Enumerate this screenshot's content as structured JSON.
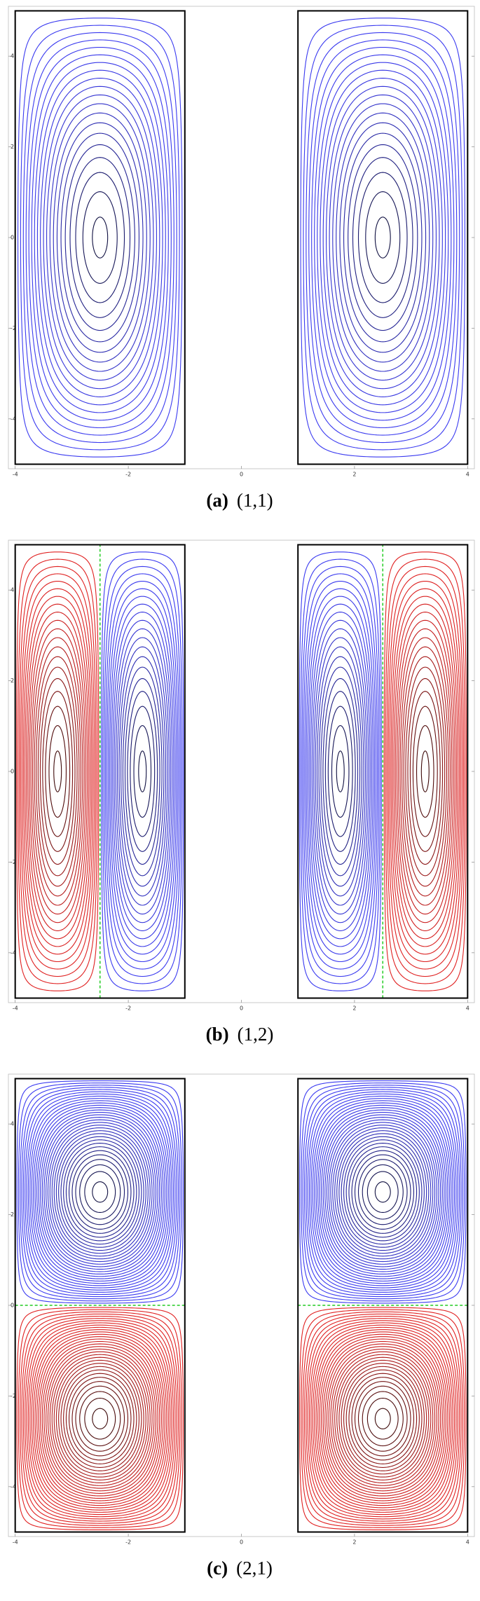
{
  "chart_data": [
    {
      "type": "contour",
      "label": "(a)",
      "caption": "(1,1)",
      "xlim": [
        -4.12,
        4.12
      ],
      "ylim": [
        -5.1,
        5.1
      ],
      "xticks": [
        -4,
        -2,
        0,
        2,
        4
      ],
      "yticks": [
        -4,
        -2,
        0,
        2,
        4
      ],
      "y_range": [
        -5,
        5
      ],
      "rows": 1,
      "cols": 1,
      "cells": [
        {
          "x": [
            -4,
            -1
          ],
          "colors": [
            "#3a3af0"
          ]
        },
        {
          "x": [
            1,
            4
          ],
          "colors": [
            "#3a3af0"
          ]
        }
      ],
      "levels": [
        0.05,
        0.1,
        0.15,
        0.2,
        0.25,
        0.3,
        0.35,
        0.4,
        0.45,
        0.5,
        0.55,
        0.6,
        0.65,
        0.7,
        0.75,
        0.8,
        0.85,
        0.9,
        0.95,
        0.99
      ]
    },
    {
      "type": "contour",
      "label": "(b)",
      "caption": "(1,2)",
      "xlim": [
        -4.12,
        4.12
      ],
      "ylim": [
        -5.1,
        5.1
      ],
      "xticks": [
        -4,
        -2,
        0,
        2,
        4
      ],
      "yticks": [
        -4,
        -2,
        0,
        2,
        4
      ],
      "y_range": [
        -5,
        5
      ],
      "rows": 1,
      "cols": 2,
      "divider_color": "#22cc22",
      "cells": [
        {
          "x": [
            -4,
            -1
          ],
          "colors": [
            "#e02020",
            "#3a3af0"
          ]
        },
        {
          "x": [
            1,
            4
          ],
          "colors": [
            "#3a3af0",
            "#e02020"
          ]
        }
      ],
      "levels": [
        0.05,
        0.1,
        0.15,
        0.2,
        0.25,
        0.3,
        0.35,
        0.4,
        0.45,
        0.5,
        0.55,
        0.6,
        0.65,
        0.7,
        0.75,
        0.8,
        0.85,
        0.9,
        0.95,
        0.99
      ]
    },
    {
      "type": "contour",
      "label": "(c)",
      "caption": "(2,1)",
      "xlim": [
        -4.12,
        4.12
      ],
      "ylim": [
        -5.1,
        5.1
      ],
      "xticks": [
        -4,
        -2,
        0,
        2,
        4
      ],
      "yticks": [
        -4,
        -2,
        0,
        2,
        4
      ],
      "y_range": [
        -5,
        5
      ],
      "rows": 2,
      "cols": 1,
      "divider_color": "#22cc22",
      "cells": [
        {
          "x": [
            -4,
            -1
          ],
          "colors": [
            "#3a3af0",
            "#e02020"
          ]
        },
        {
          "x": [
            1,
            4
          ],
          "colors": [
            "#3a3af0",
            "#e02020"
          ]
        }
      ],
      "levels": [
        0.03,
        0.06,
        0.09,
        0.12,
        0.15,
        0.18,
        0.21,
        0.24,
        0.27,
        0.3,
        0.33,
        0.36,
        0.39,
        0.42,
        0.45,
        0.48,
        0.51,
        0.54,
        0.57,
        0.6,
        0.63,
        0.66,
        0.69,
        0.72,
        0.75,
        0.78,
        0.81,
        0.84,
        0.87,
        0.9,
        0.93,
        0.96,
        0.99
      ]
    }
  ]
}
